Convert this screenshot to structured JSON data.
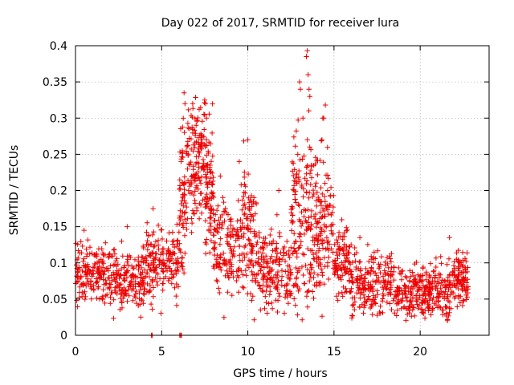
{
  "chart_data": {
    "type": "scatter",
    "title": "Day 022 of 2017, SRMTID for receiver lura",
    "xlabel": "GPS time / hours",
    "ylabel": "SRMTID / TECUs",
    "xlim": [
      0,
      24
    ],
    "ylim": [
      0,
      0.4
    ],
    "xticks": [
      0,
      5,
      10,
      15,
      20
    ],
    "xtick_labels": [
      "0",
      "5",
      "10",
      "15",
      "20"
    ],
    "yticks": [
      0,
      0.05,
      0.1,
      0.15,
      0.2,
      0.25,
      0.3,
      0.35,
      0.4
    ],
    "ytick_labels": [
      "0",
      "0.05",
      "0.1",
      "0.15",
      "0.2",
      "0.25",
      "0.3",
      "0.35",
      "0.4"
    ],
    "grid": true,
    "marker": "plus",
    "color": "#ee0000",
    "series": [
      {
        "name": "SRMTID",
        "segments": [
          {
            "x0": 0.0,
            "x1": 2.0,
            "mean": 0.085,
            "spread": 0.02,
            "count": 170
          },
          {
            "x0": 2.0,
            "x1": 4.0,
            "mean": 0.08,
            "spread": 0.022,
            "count": 170
          },
          {
            "x0": 4.0,
            "x1": 6.0,
            "mean": 0.1,
            "spread": 0.025,
            "count": 170
          },
          {
            "x0": 6.0,
            "x1": 6.5,
            "mean": 0.2,
            "spread": 0.05,
            "count": 70
          },
          {
            "x0": 6.5,
            "x1": 7.5,
            "mean": 0.24,
            "spread": 0.045,
            "count": 130
          },
          {
            "x0": 7.5,
            "x1": 8.0,
            "mean": 0.2,
            "spread": 0.04,
            "count": 80
          },
          {
            "x0": 8.0,
            "x1": 9.5,
            "mean": 0.12,
            "spread": 0.03,
            "count": 140
          },
          {
            "x0": 9.5,
            "x1": 10.5,
            "mean": 0.14,
            "spread": 0.045,
            "count": 110
          },
          {
            "x0": 10.5,
            "x1": 12.5,
            "mean": 0.09,
            "spread": 0.028,
            "count": 170
          },
          {
            "x0": 12.5,
            "x1": 13.3,
            "mean": 0.15,
            "spread": 0.06,
            "count": 100
          },
          {
            "x0": 13.3,
            "x1": 14.0,
            "mean": 0.16,
            "spread": 0.06,
            "count": 90
          },
          {
            "x0": 14.0,
            "x1": 15.0,
            "mean": 0.15,
            "spread": 0.05,
            "count": 110
          },
          {
            "x0": 15.0,
            "x1": 16.0,
            "mean": 0.1,
            "spread": 0.025,
            "count": 100
          },
          {
            "x0": 16.0,
            "x1": 18.5,
            "mean": 0.07,
            "spread": 0.02,
            "count": 200
          },
          {
            "x0": 18.5,
            "x1": 20.5,
            "mean": 0.06,
            "spread": 0.018,
            "count": 170
          },
          {
            "x0": 20.5,
            "x1": 21.8,
            "mean": 0.06,
            "spread": 0.018,
            "count": 120
          },
          {
            "x0": 21.8,
            "x1": 22.8,
            "mean": 0.08,
            "spread": 0.02,
            "count": 100
          }
        ],
        "peaks": [
          {
            "x": 6.3,
            "y": 0.335
          },
          {
            "x": 6.35,
            "y": 0.32
          },
          {
            "x": 6.8,
            "y": 0.32
          },
          {
            "x": 7.5,
            "y": 0.325
          },
          {
            "x": 7.55,
            "y": 0.32
          },
          {
            "x": 7.6,
            "y": 0.3
          },
          {
            "x": 7.0,
            "y": 0.29
          },
          {
            "x": 9.5,
            "y": 0.24
          },
          {
            "x": 10.0,
            "y": 0.27
          },
          {
            "x": 13.0,
            "y": 0.35
          },
          {
            "x": 13.05,
            "y": 0.34
          },
          {
            "x": 13.4,
            "y": 0.385
          },
          {
            "x": 13.45,
            "y": 0.393
          },
          {
            "x": 13.5,
            "y": 0.36
          },
          {
            "x": 13.55,
            "y": 0.34
          },
          {
            "x": 13.6,
            "y": 0.33
          },
          {
            "x": 13.2,
            "y": 0.3
          },
          {
            "x": 14.35,
            "y": 0.3
          },
          {
            "x": 14.4,
            "y": 0.3
          },
          {
            "x": 14.5,
            "y": 0.318
          },
          {
            "x": 14.3,
            "y": 0.27
          },
          {
            "x": 8.4,
            "y": 0.22
          },
          {
            "x": 11.8,
            "y": 0.2
          },
          {
            "x": 12.9,
            "y": 0.25
          },
          {
            "x": 4.5,
            "y": 0.175
          },
          {
            "x": 0.5,
            "y": 0.145
          },
          {
            "x": 3.0,
            "y": 0.15
          },
          {
            "x": 21.7,
            "y": 0.135
          },
          {
            "x": 16.5,
            "y": 0.135
          }
        ],
        "zeros": [
          {
            "x": 4.4,
            "y": 0
          },
          {
            "x": 4.45,
            "y": 0
          },
          {
            "x": 6.05,
            "y": 0
          },
          {
            "x": 6.1,
            "y": 0
          },
          {
            "x": 6.15,
            "y": 0
          }
        ]
      }
    ]
  }
}
